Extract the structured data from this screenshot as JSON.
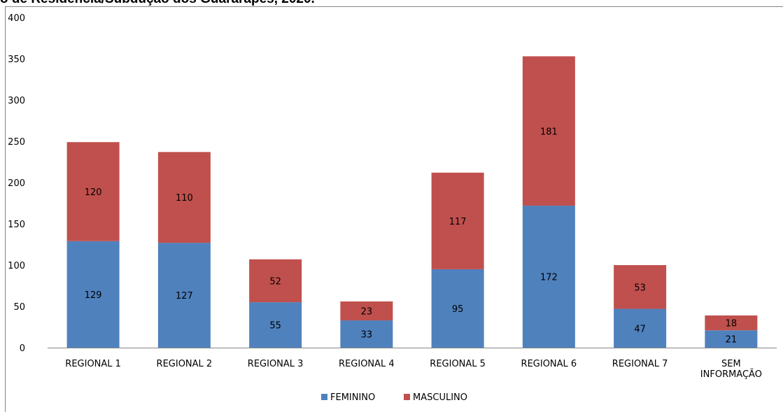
{
  "chart_data": {
    "type": "bar",
    "stacked": true,
    "title": "o de Residência/Subdução dos Guararapes, 2020.",
    "xlabel": "",
    "ylabel": "",
    "ylim": [
      0,
      400
    ],
    "yticks": [
      0,
      50,
      100,
      150,
      200,
      250,
      300,
      350,
      400
    ],
    "categories": [
      "REGIONAL 1",
      "REGIONAL 2",
      "REGIONAL 3",
      "REGIONAL 4",
      "REGIONAL 5",
      "REGIONAL 6",
      "REGIONAL 7",
      "SEM INFORMAÇÃO"
    ],
    "series": [
      {
        "name": "FEMININO",
        "color": "#4F81BD",
        "values": [
          129,
          127,
          55,
          33,
          95,
          172,
          47,
          21
        ]
      },
      {
        "name": "MASCULINO",
        "color": "#C0504D",
        "values": [
          120,
          110,
          52,
          23,
          117,
          181,
          53,
          18
        ]
      }
    ],
    "grid": false,
    "legend_position": "bottom"
  }
}
